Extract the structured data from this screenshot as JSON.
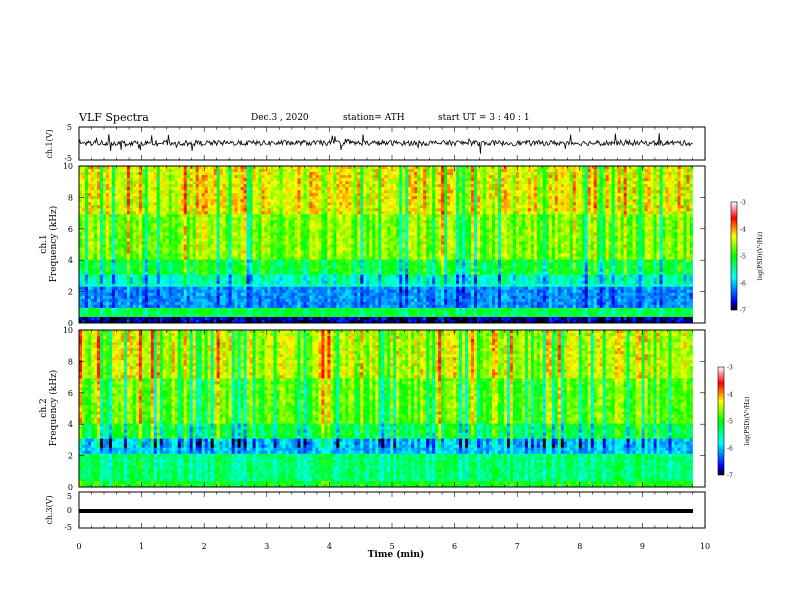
{
  "header": {
    "title": "VLF Spectra",
    "date": "Dec.3  , 2020",
    "station": "station= ATH",
    "start": "start  UT  =   3  : 40 : 1"
  },
  "chart_data": [
    {
      "type": "line",
      "id": "ch1-waveform",
      "ylabel": "ch.1(V)",
      "ylim": [
        -5,
        5
      ],
      "yticks": [
        "5",
        "-5"
      ],
      "x_unit": "min",
      "xlim": [
        0,
        10
      ],
      "trace": "noisy waveform around 0 V with spikes up to about +/-3 V",
      "data_end": 9.8
    },
    {
      "type": "heatmap",
      "id": "ch1-spectrogram",
      "ylabel": "ch.1\nFrequency (kHz)",
      "ylabel_line1": "ch.1",
      "ylabel_line2": "Frequency (kHz)",
      "ylim": [
        0,
        10
      ],
      "yticks": [
        "0",
        "2",
        "4",
        "6",
        "8",
        "10"
      ],
      "xlim": [
        0,
        10
      ],
      "data_end": 9.8,
      "colorbar": {
        "label": "log(PSD)(V²/Hz)",
        "range": [
          -7,
          -3
        ],
        "ticks": [
          "-3",
          "-4",
          "-5",
          "-6",
          "-7"
        ],
        "colors": [
          "#000000",
          "#0000ff",
          "#00ffff",
          "#00ff00",
          "#ffff00",
          "#ff0000",
          "#ffffff"
        ]
      }
    },
    {
      "type": "heatmap",
      "id": "ch2-spectrogram",
      "ylabel_line1": "ch.2",
      "ylabel_line2": "Frequency (kHz)",
      "ylim": [
        0,
        10
      ],
      "yticks": [
        "0",
        "2",
        "4",
        "6",
        "8",
        "10"
      ],
      "xlim": [
        0,
        10
      ],
      "data_end": 9.8,
      "colorbar": {
        "label": "log(PSD)(V²/Hz)",
        "range": [
          -7,
          -3
        ],
        "ticks": [
          "-3",
          "-4",
          "-5",
          "-6",
          "-7"
        ],
        "colors": [
          "#000000",
          "#0000ff",
          "#00ffff",
          "#00ff00",
          "#ffff00",
          "#ff0000",
          "#ffffff"
        ]
      }
    },
    {
      "type": "line",
      "id": "ch3-waveform",
      "ylabel": "ch.3(V)",
      "ylim": [
        -5,
        5
      ],
      "yticks": [
        "5",
        "0",
        "-5"
      ],
      "xlim": [
        0,
        10
      ],
      "data_end": 9.8,
      "trace": "flat thick line near -1 V"
    }
  ],
  "xaxis": {
    "label": "Time  (min)",
    "ticks": [
      "0",
      "1",
      "2",
      "3",
      "4",
      "5",
      "6",
      "7",
      "8",
      "9",
      "10"
    ]
  }
}
